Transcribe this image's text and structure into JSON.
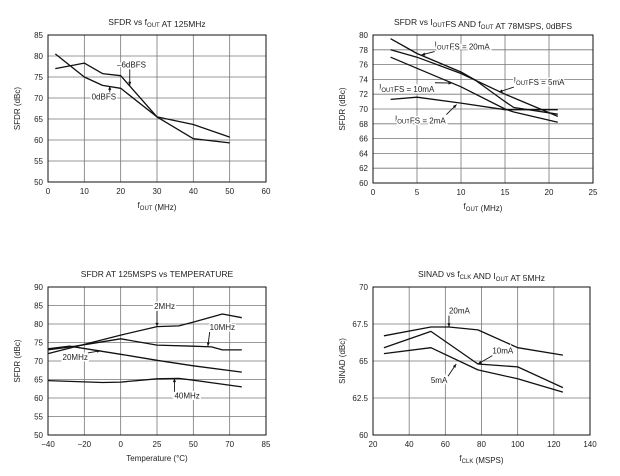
{
  "chart_data": [
    {
      "type": "line",
      "title": [
        {
          "t": "SFDR vs f"
        },
        {
          "sub": "OUT"
        },
        {
          "t": " AT 125MHz"
        }
      ],
      "xlabel": [
        {
          "t": "f"
        },
        {
          "sub": "OUT"
        },
        {
          "t": " (MHz)"
        }
      ],
      "ylabel": "SFDR (dBc)",
      "xticks": [
        0,
        10,
        20,
        30,
        40,
        50,
        60
      ],
      "yticks": [
        50,
        55,
        60,
        65,
        70,
        75,
        80,
        85
      ],
      "xlim": [
        0,
        60
      ],
      "ylim": [
        50,
        85
      ],
      "grid": true,
      "series": [
        {
          "name": "0dBFS",
          "x": [
            2,
            10,
            15,
            20,
            30,
            40,
            50
          ],
          "y": [
            80.5,
            75,
            73,
            72.3,
            65.5,
            60.3,
            59.3
          ]
        },
        {
          "name": "-6dBFS",
          "x": [
            2,
            10,
            15,
            20,
            30,
            40,
            50
          ],
          "y": [
            77,
            78.3,
            75.8,
            75.3,
            65.5,
            63.7,
            60.7
          ]
        }
      ],
      "annotations": [
        {
          "label": [
            {
              "t": "0dBFS"
            }
          ],
          "at": [
            12,
            69.7
          ],
          "points_to": [
            17,
            72.8
          ]
        },
        {
          "label": [
            {
              "t": "–6dBFS"
            }
          ],
          "at": [
            19,
            77.3
          ],
          "points_to": [
            22.5,
            73
          ]
        }
      ]
    },
    {
      "type": "line",
      "title": [
        {
          "t": "SFDR vs I"
        },
        {
          "sub": "OUT"
        },
        {
          "t": "FS AND f"
        },
        {
          "sub": "OUT"
        },
        {
          "t": " AT 78MSPS, 0dBFS"
        }
      ],
      "xlabel": [
        {
          "t": "f"
        },
        {
          "sub": "OUT"
        },
        {
          "t": " (MHz)"
        }
      ],
      "ylabel": "SFDR (dBc)",
      "xticks": [
        0,
        5,
        10,
        15,
        20,
        25
      ],
      "yticks": [
        60,
        62,
        64,
        66,
        68,
        70,
        72,
        74,
        76,
        78,
        80
      ],
      "xlim": [
        0,
        25
      ],
      "ylim": [
        60,
        80
      ],
      "grid": true,
      "series": [
        {
          "name": "IOUTFS = 20mA",
          "x": [
            2,
            5,
            10,
            11.5,
            15,
            16,
            21
          ],
          "y": [
            79.5,
            77.5,
            75,
            74,
            71,
            70.2,
            69.3
          ]
        },
        {
          "name": "IOUTFS = 5mA",
          "x": [
            2,
            5,
            10,
            15,
            16,
            21
          ],
          "y": [
            78,
            77,
            74.8,
            72,
            71.5,
            69
          ]
        },
        {
          "name": "IOUTFS = 10mA",
          "x": [
            2,
            5,
            10,
            15,
            16,
            21
          ],
          "y": [
            77,
            75.5,
            73,
            70,
            69.6,
            68.2
          ]
        },
        {
          "name": "IOUTFS = 2mA",
          "x": [
            2,
            5,
            10,
            15,
            21
          ],
          "y": [
            71.3,
            71.6,
            70.8,
            69.9,
            69.9
          ]
        }
      ],
      "annotations": [
        {
          "label": [
            {
              "t": "I"
            },
            {
              "sub": "OUT"
            },
            {
              "t": "FS = 20mA"
            }
          ],
          "at": [
            7,
            78.3
          ],
          "points_to": [
            5.5,
            77.3
          ]
        },
        {
          "label": [
            {
              "t": "I"
            },
            {
              "sub": "OUT"
            },
            {
              "t": "FS = 5mA"
            }
          ],
          "at": [
            16,
            73.5
          ],
          "points_to": [
            14.3,
            72.3
          ]
        },
        {
          "label": [
            {
              "t": "I"
            },
            {
              "sub": "OUT"
            },
            {
              "t": "FS = 10mA"
            }
          ],
          "at": [
            0.7,
            72.6
          ],
          "points_to": [
            9,
            73.5
          ]
        },
        {
          "label": [
            {
              "t": "I"
            },
            {
              "sub": "OUT"
            },
            {
              "t": "FS = 2mA"
            }
          ],
          "at": [
            2.5,
            68.3
          ],
          "points_to": [
            9.5,
            70.6
          ]
        }
      ]
    },
    {
      "type": "line",
      "title": [
        {
          "t": "SFDR AT 125MSPS vs TEMPERATURE"
        }
      ],
      "xlabel": [
        {
          "t": "Temperature (°C)"
        }
      ],
      "ylabel": "SFDR (dBc)",
      "xticks": [
        -40,
        -20,
        0,
        25,
        50,
        70,
        85
      ],
      "yticks": [
        50,
        55,
        60,
        65,
        70,
        75,
        80,
        85,
        90
      ],
      "xlim": [
        -40,
        85
      ],
      "ylim": [
        50,
        90
      ],
      "grid": true,
      "series": [
        {
          "name": "2MHz",
          "x": [
            -40,
            0,
            25,
            40,
            50,
            66,
            75
          ],
          "y": [
            72,
            77,
            79.3,
            79.5,
            80.5,
            82.7,
            81.7
          ]
        },
        {
          "name": "10MHz",
          "x": [
            -40,
            -25,
            0,
            25,
            50,
            60,
            66,
            75
          ],
          "y": [
            73,
            74,
            76,
            74.3,
            74,
            73.8,
            73,
            73
          ]
        },
        {
          "name": "20MHz",
          "x": [
            -40,
            -28,
            0,
            25,
            50,
            75
          ],
          "y": [
            73.3,
            74,
            71.8,
            70.2,
            68.7,
            67
          ]
        },
        {
          "name": "40MHz",
          "x": [
            -40,
            -10,
            0,
            25,
            40,
            50,
            75
          ],
          "y": [
            64.7,
            64.2,
            64.3,
            65.2,
            65.3,
            64.8,
            63
          ]
        }
      ],
      "annotations": [
        {
          "label": [
            {
              "t": "2MHz"
            }
          ],
          "at": [
            23,
            84
          ],
          "points_to": [
            25,
            79.3
          ]
        },
        {
          "label": [
            {
              "t": "10MHz"
            }
          ],
          "at": [
            59,
            78.4
          ],
          "points_to": [
            58,
            74
          ]
        },
        {
          "label": [
            {
              "t": "20MHz"
            }
          ],
          "at": [
            -32,
            70.3
          ],
          "points_to": [
            -11,
            72.8
          ]
        },
        {
          "label": [
            {
              "t": "40MHz"
            }
          ],
          "at": [
            37,
            59.8
          ],
          "points_to": [
            37,
            65.3
          ]
        }
      ]
    },
    {
      "type": "line",
      "title": [
        {
          "t": "SINAD vs f"
        },
        {
          "sub": "CLK"
        },
        {
          "t": " AND I"
        },
        {
          "sub": "OUT"
        },
        {
          "t": " AT 5MHz"
        }
      ],
      "xlabel": [
        {
          "t": "f"
        },
        {
          "sub": "CLK"
        },
        {
          "t": " (MSPS)"
        }
      ],
      "ylabel": "SINAD (dBc)",
      "xticks": [
        20,
        40,
        60,
        80,
        100,
        120,
        140
      ],
      "yticks": [
        60,
        62.5,
        65,
        67.5,
        70
      ],
      "ytick_labels": [
        "60",
        "62.5",
        "65",
        "67.5",
        "70"
      ],
      "xlim": [
        20,
        140
      ],
      "ylim": [
        60,
        70
      ],
      "grid": true,
      "series": [
        {
          "name": "20mA",
          "x": [
            26,
            52,
            62,
            78,
            100,
            125
          ],
          "y": [
            66.7,
            67.3,
            67.3,
            67.1,
            65.9,
            65.4
          ]
        },
        {
          "name": "10mA",
          "x": [
            26,
            52,
            78,
            100,
            125
          ],
          "y": [
            65.9,
            67,
            64.8,
            64.6,
            63.2
          ]
        },
        {
          "name": "5mA",
          "x": [
            26,
            52,
            78,
            100,
            125
          ],
          "y": [
            65.5,
            65.9,
            64.4,
            63.8,
            62.9
          ]
        }
      ],
      "annotations": [
        {
          "label": [
            {
              "t": "20mA"
            }
          ],
          "at": [
            62,
            68.2
          ],
          "points_to": [
            62,
            67.3
          ]
        },
        {
          "label": [
            {
              "t": "10mA"
            }
          ],
          "at": [
            86,
            65.5
          ],
          "points_to": [
            78,
            64.8
          ]
        },
        {
          "label": [
            {
              "t": "5mA"
            }
          ],
          "at": [
            52,
            63.5
          ],
          "points_to": [
            66,
            64.8
          ]
        }
      ]
    }
  ]
}
